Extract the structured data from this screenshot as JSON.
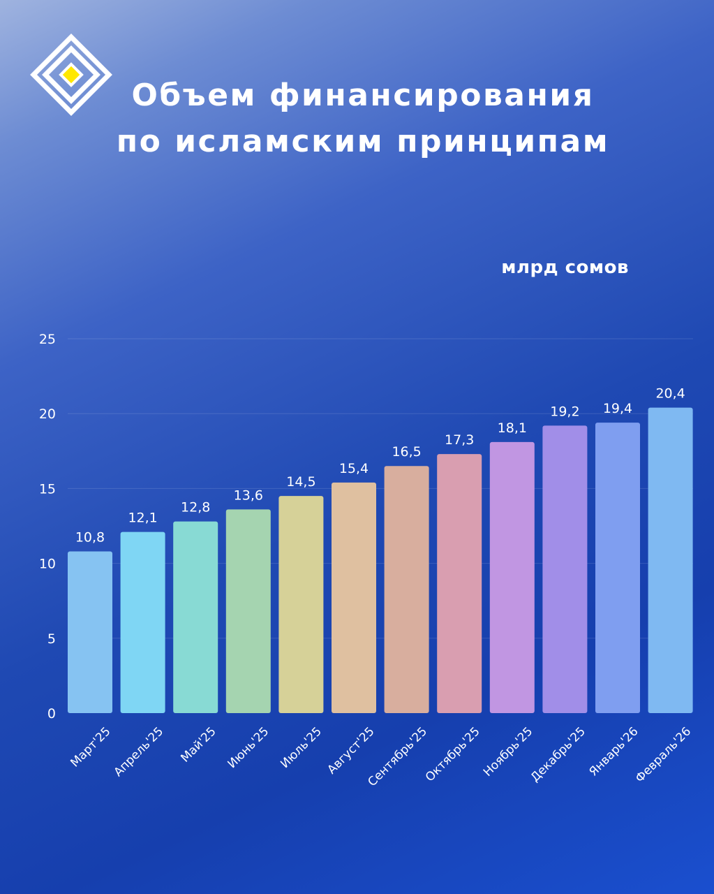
{
  "title": {
    "line1": "Объем финансирования",
    "line2": "по исламским принципам"
  },
  "logo": {
    "icon": "diamond-logo-icon",
    "accent_color": "#ffe800"
  },
  "chart_data": {
    "type": "bar",
    "unit_label": "млрд сомов",
    "categories": [
      "Март'25",
      "Апрель'25",
      "Май'25",
      "Июнь'25",
      "Июль'25",
      "Август'25",
      "Сентябрь'25",
      "Октябрь'25",
      "Ноябрь'25",
      "Декабрь'25",
      "Январь'26",
      "Февраль'26"
    ],
    "values": [
      10.8,
      12.1,
      12.8,
      13.6,
      14.5,
      15.4,
      16.5,
      17.3,
      18.1,
      19.2,
      19.4,
      20.4
    ],
    "value_labels": [
      "10,8",
      "12,1",
      "12,8",
      "13,6",
      "14,5",
      "15,4",
      "16,5",
      "17,3",
      "18,1",
      "19,2",
      "19,4",
      "20,4"
    ],
    "colors": [
      "#86c3f2",
      "#7fd6f4",
      "#88dad4",
      "#a5d4b0",
      "#d6d198",
      "#dfc0a0",
      "#d8ae9e",
      "#d99eb0",
      "#c196e2",
      "#a18ee8",
      "#7f9ef0",
      "#7fb9f2"
    ],
    "yticks": [
      0,
      5,
      10,
      15,
      20,
      25
    ],
    "ylim": [
      0,
      25
    ],
    "grid": true,
    "xlabel": "",
    "ylabel": ""
  }
}
